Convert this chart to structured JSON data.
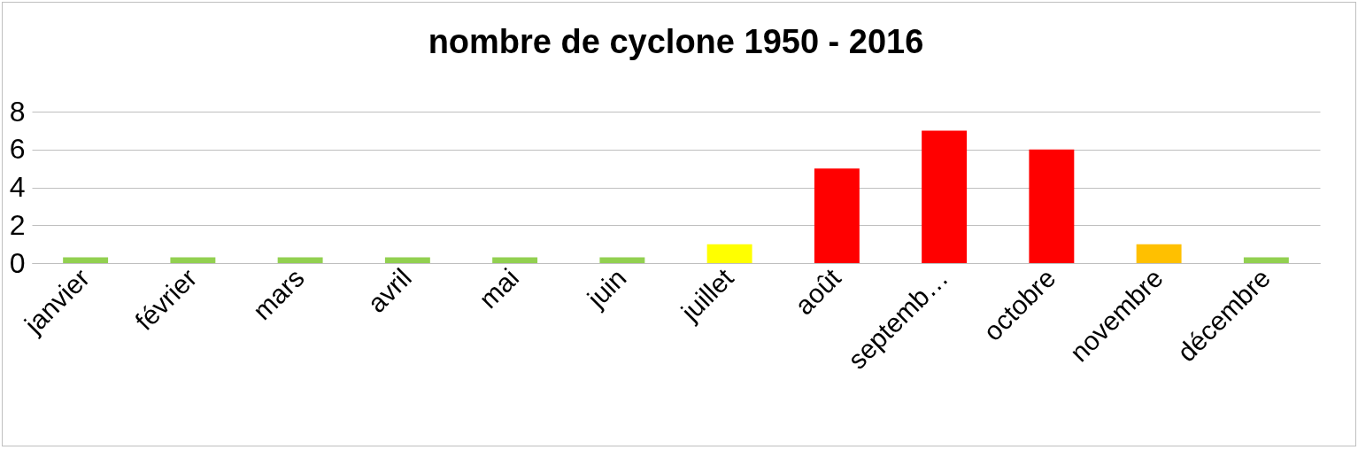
{
  "chart_data": {
    "type": "bar",
    "title": "nombre de cyclone 1950 - 2016",
    "categories": [
      "janvier",
      "février",
      "mars",
      "avril",
      "mai",
      "juin",
      "juillet",
      "août",
      "septemb…",
      "octobre",
      "novembre",
      "décembre"
    ],
    "values": [
      0.3,
      0.3,
      0.3,
      0.3,
      0.3,
      0.3,
      1,
      5,
      7,
      6,
      1,
      0.3
    ],
    "colors": [
      "#92d050",
      "#92d050",
      "#92d050",
      "#92d050",
      "#92d050",
      "#92d050",
      "#ffff00",
      "#ff0000",
      "#ff0000",
      "#ff0000",
      "#ffc000",
      "#92d050"
    ],
    "ylim": [
      0,
      8
    ],
    "yticks": [
      0,
      2,
      4,
      6,
      8
    ],
    "grid": "y"
  }
}
